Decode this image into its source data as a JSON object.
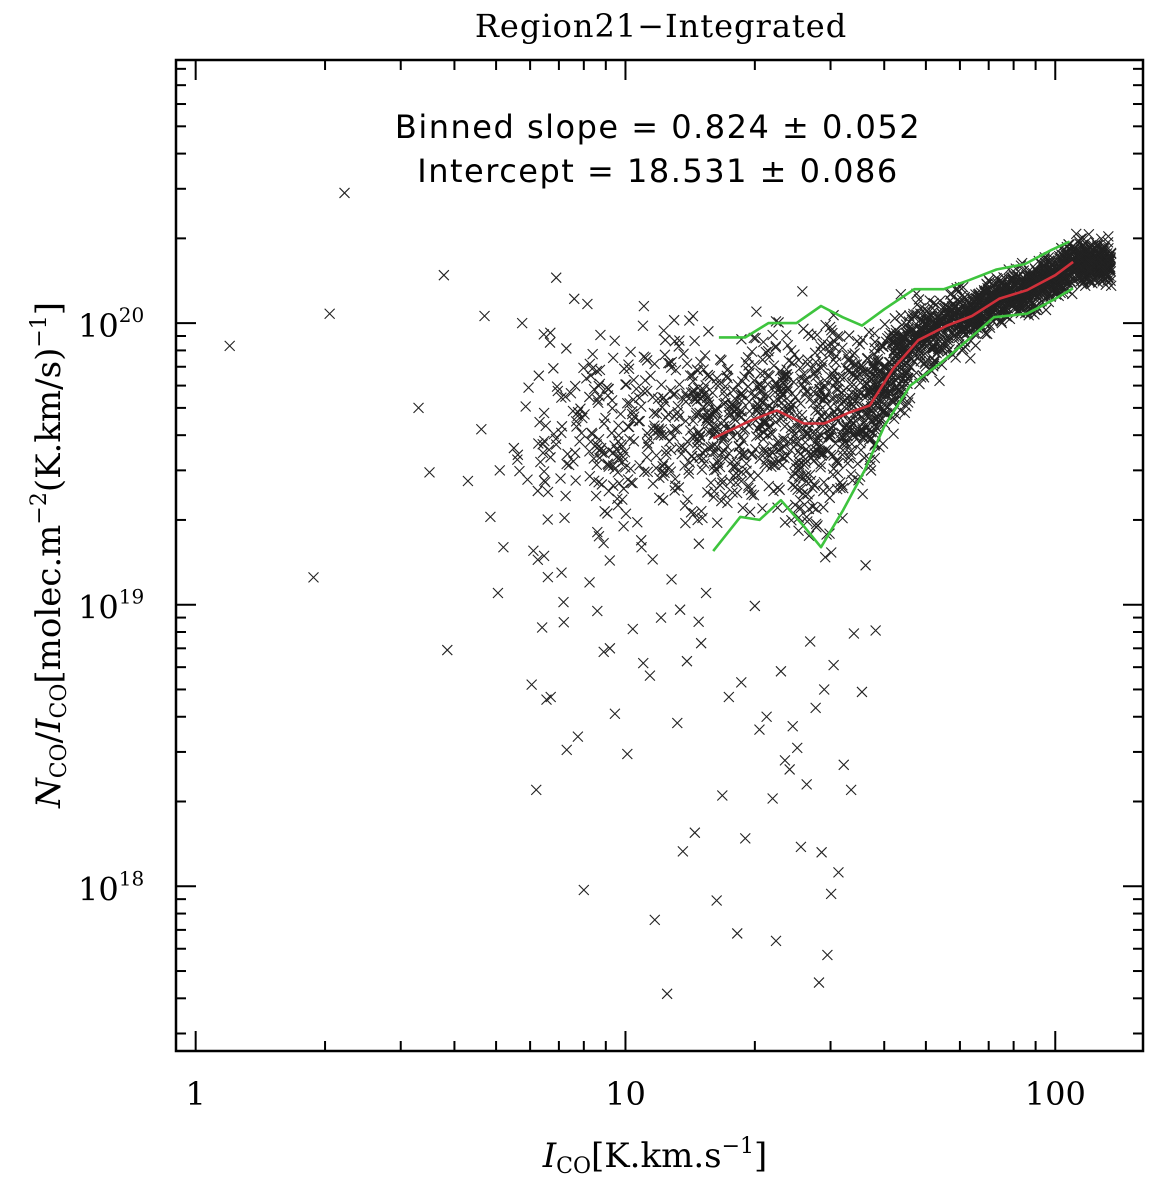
{
  "chart_data": {
    "type": "scatter",
    "title": "Region21−Integrated",
    "x_scale": "log",
    "y_scale": "log",
    "xlim": [
      0.9,
      160
    ],
    "ylim": [
      2.6e+17,
      8.6e+20
    ],
    "xlabel": {
      "main": "I",
      "sub": "CO",
      "unit_pre": "[K.km.s",
      "unit_sup": "−1",
      "unit_post": "]"
    },
    "ylabel": {
      "n_main": "N",
      "n_sub": "CO",
      "slash": "/",
      "i_main": "I",
      "i_sub": "CO",
      "unit_a": "[molec.m",
      "unit_a_sup": "−2",
      "unit_b": "(K.km/s)",
      "unit_b_sup": "−1",
      "unit_c": "]"
    },
    "x_tick_labels": [
      {
        "value": 1,
        "label": "1"
      },
      {
        "value": 10,
        "label": "10"
      },
      {
        "value": 100,
        "label": "100"
      }
    ],
    "y_tick_labels": [
      {
        "value": 1e+18,
        "base": "10",
        "exp": "18"
      },
      {
        "value": 1e+19,
        "base": "10",
        "exp": "19"
      },
      {
        "value": 1e+20,
        "base": "10",
        "exp": "20"
      }
    ],
    "annotations": {
      "slope": "Binned slope = 0.824 ± 0.052",
      "intercept": "Intercept = 18.531 ± 0.086"
    },
    "colors": {
      "points": "#222222",
      "median": "#d0303a",
      "bounds": "#3ec43e",
      "frame": "#000000"
    },
    "lines": [
      {
        "name": "binned median",
        "color": "#d0303a",
        "points": [
          [
            16.0,
            3.9e+19
          ],
          [
            19.5,
            4.5e+19
          ],
          [
            22.5,
            4.9e+19
          ],
          [
            26,
            4.4e+19
          ],
          [
            29,
            4.4e+19
          ],
          [
            33,
            4.8e+19
          ],
          [
            37,
            5.1e+19
          ],
          [
            42,
            6.9e+19
          ],
          [
            48,
            8.7e+19
          ],
          [
            56,
            9.8e+19
          ],
          [
            64,
            1.06e+20
          ],
          [
            74,
            1.22e+20
          ],
          [
            86,
            1.31e+20
          ],
          [
            100,
            1.48e+20
          ],
          [
            110,
            1.65e+20
          ]
        ]
      },
      {
        "name": "upper bound",
        "color": "#3ec43e",
        "points": [
          [
            16.5,
            8.9e+19
          ],
          [
            19.0,
            8.9e+19
          ],
          [
            21.5,
            1e+20
          ],
          [
            25,
            1e+20
          ],
          [
            28.5,
            1.15e+20
          ],
          [
            32,
            1.05e+20
          ],
          [
            35.5,
            9.8e+19
          ],
          [
            40,
            1.12e+20
          ],
          [
            47,
            1.32e+20
          ],
          [
            55,
            1.32e+20
          ],
          [
            63,
            1.42e+20
          ],
          [
            73,
            1.55e+20
          ],
          [
            85,
            1.62e+20
          ],
          [
            98,
            1.82e+20
          ],
          [
            108,
            1.95e+20
          ]
        ]
      },
      {
        "name": "lower bound",
        "color": "#3ec43e",
        "points": [
          [
            16.0,
            1.55e+19
          ],
          [
            18.5,
            2.05e+19
          ],
          [
            20.5,
            2e+19
          ],
          [
            23,
            2.35e+19
          ],
          [
            26,
            1.9e+19
          ],
          [
            28.5,
            1.6e+19
          ],
          [
            32,
            2.15e+19
          ],
          [
            36,
            3e+19
          ],
          [
            40,
            4.3e+19
          ],
          [
            46,
            6e+19
          ],
          [
            54,
            7.2e+19
          ],
          [
            62,
            8.6e+19
          ],
          [
            72,
            1.05e+20
          ],
          [
            86,
            1.08e+20
          ],
          [
            100,
            1.22e+20
          ],
          [
            110,
            1.33e+20
          ]
        ]
      }
    ],
    "series": [
      {
        "name": "pixels",
        "marker": "x",
        "x": [
          1.2,
          1.88,
          2.05,
          2.22,
          3.3,
          3.78,
          3.85,
          4.3,
          4.62,
          4.7,
          4.85,
          5.05,
          5.2,
          5.5,
          5.75,
          5.95,
          6.2,
          6.4,
          6.7,
          6.9,
          7.3,
          7.6,
          8.0,
          8.6,
          9.2,
          9.6,
          10.1,
          11.0,
          11.7,
          12.5,
          12.8,
          13.6,
          14.5,
          15.0,
          16.3,
          16.8,
          18.2,
          19.0,
          20.0,
          22.0,
          22.4,
          23.5,
          24.5,
          25.6,
          26.4,
          28.2,
          28.6,
          29.5,
          30.1,
          31.3,
          33.5,
          36.2,
          3.5,
          5.1,
          6.05,
          6.55,
          7.1,
          7.75,
          8.25,
          8.9,
          9.45,
          10.4,
          10.9,
          11.4,
          12.1,
          13.2,
          13.9,
          14.8,
          15.4,
          17.4,
          18.6,
          20.5,
          21.3,
          23.0,
          24.1,
          25.1,
          26.9,
          27.7,
          29.0,
          30.5,
          32.2,
          34.0,
          35.5,
          38.2,
          9.9,
          13.4
        ],
        "y": [
          8.3e+19,
          1.25e+19,
          1.08e+20,
          2.9e+20,
          5e+19,
          1.48e+20,
          6.9e+18,
          2.75e+19,
          4.2e+19,
          1.06e+20,
          2.05e+19,
          1.1e+19,
          1.6e+19,
          3.6e+19,
          1e+20,
          5.9e+19,
          2.2e+18,
          8.3e+18,
          4.7e+18,
          1.45e+20,
          3.05e+18,
          1.22e+20,
          9.7e+17,
          9.5e+18,
          7e+18,
          2.95e+19,
          2.95e+18,
          6.2e+18,
          7.6e+17,
          4.15e+17,
          1.23e+19,
          1.33e+18,
          1.55e+18,
          7.3e+18,
          8.9e+17,
          2.1e+18,
          6.8e+17,
          1.48e+18,
          9.9e+18,
          2.05e+18,
          6.4e+17,
          2.8e+18,
          3.7e+18,
          1.38e+18,
          2.3e+18,
          4.55e+17,
          1.32e+18,
          5.7e+17,
          9.4e+17,
          1.12e+18,
          2.2e+18,
          1.38e+19,
          2.95e+19,
          3e+19,
          5.2e+18,
          4.6e+18,
          1.3e+19,
          3.4e+18,
          1.2e+19,
          6.8e+18,
          4.1e+18,
          8.2e+18,
          1.6e+19,
          5.6e+18,
          9e+18,
          3.8e+18,
          6.3e+18,
          8.7e+18,
          1.1e+19,
          4.7e+18,
          5.3e+18,
          3.6e+18,
          4e+18,
          5.8e+18,
          2.6e+18,
          3.1e+18,
          7.4e+18,
          4.3e+18,
          5e+18,
          6.1e+18,
          2.7e+18,
          7.9e+18,
          4.9e+18,
          8.1e+18,
          1.9e+19,
          9.6e+18
        ]
      }
    ]
  }
}
